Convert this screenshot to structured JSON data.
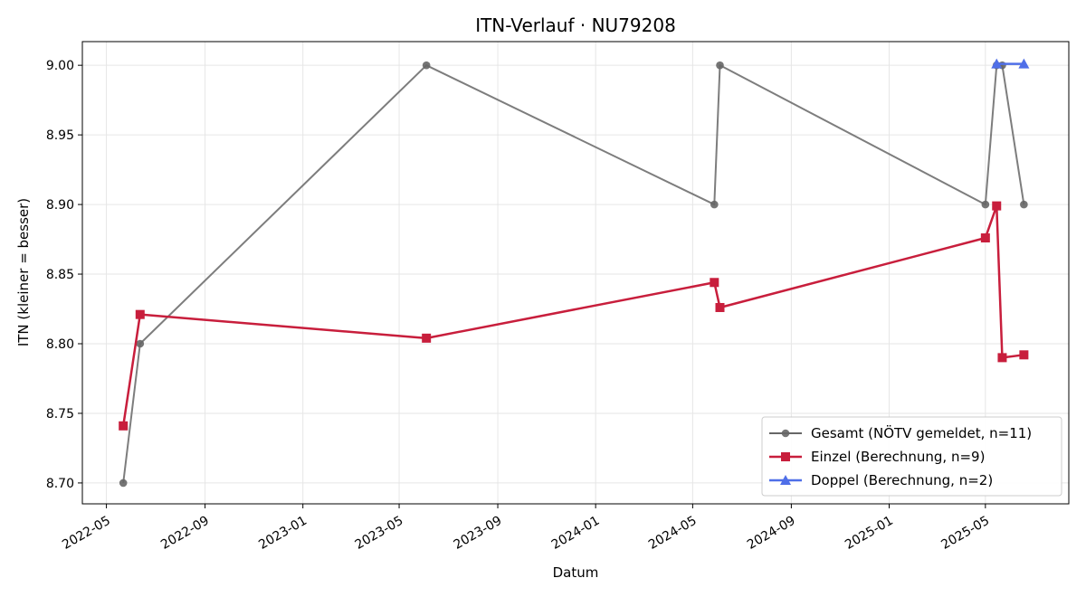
{
  "chart_data": {
    "type": "line",
    "title": "ITN-Verlauf · NU79208",
    "xlabel": "Datum",
    "ylabel": "ITN  (kleiner = besser)",
    "x_type": "date",
    "xlim": [
      "2022-04-01",
      "2025-08-13"
    ],
    "ylim": [
      8.685,
      9.017
    ],
    "xticks": [
      "2022-05-01",
      "2022-09-01",
      "2023-01-01",
      "2023-05-01",
      "2023-09-01",
      "2024-01-01",
      "2024-05-01",
      "2024-09-01",
      "2025-01-01",
      "2025-05-01"
    ],
    "xtick_labels": [
      "2022-05",
      "2022-09",
      "2023-01",
      "2023-05",
      "2023-09",
      "2024-01",
      "2024-05",
      "2024-09",
      "2025-01",
      "2025-05"
    ],
    "yticks": [
      8.7,
      8.75,
      8.8,
      8.85,
      8.9,
      8.95,
      9.0
    ],
    "ytick_labels": [
      "8.70",
      "8.75",
      "8.80",
      "8.85",
      "8.90",
      "8.95",
      "9.00"
    ],
    "grid": true,
    "legend_position": "bottom-right",
    "series": [
      {
        "name": "Gesamt (NÖTV gemeldet, n=11)",
        "color": "#666666",
        "marker": "circle",
        "x": [
          "2022-05-22",
          "2022-06-12",
          "2023-06-04",
          "2024-05-28",
          "2024-06-04",
          "2025-05-01",
          "2025-05-15",
          "2025-05-22",
          "2025-06-18"
        ],
        "y": [
          8.7,
          8.8,
          9.0,
          8.9,
          9.0,
          8.9,
          9.0,
          9.0,
          8.9
        ]
      },
      {
        "name": "Einzel (Berechnung, n=9)",
        "color": "#c81e3c",
        "marker": "square",
        "x": [
          "2022-05-22",
          "2022-06-12",
          "2023-06-04",
          "2024-05-28",
          "2024-06-04",
          "2025-05-01",
          "2025-05-15",
          "2025-05-22",
          "2025-06-18"
        ],
        "y": [
          8.741,
          8.821,
          8.804,
          8.844,
          8.826,
          8.876,
          8.899,
          8.79,
          8.792
        ]
      },
      {
        "name": "Doppel (Berechnung, n=2)",
        "color": "#4f6fe8",
        "marker": "triangle",
        "x": [
          "2025-05-15",
          "2025-06-18"
        ],
        "y": [
          9.001,
          9.001
        ]
      }
    ]
  }
}
